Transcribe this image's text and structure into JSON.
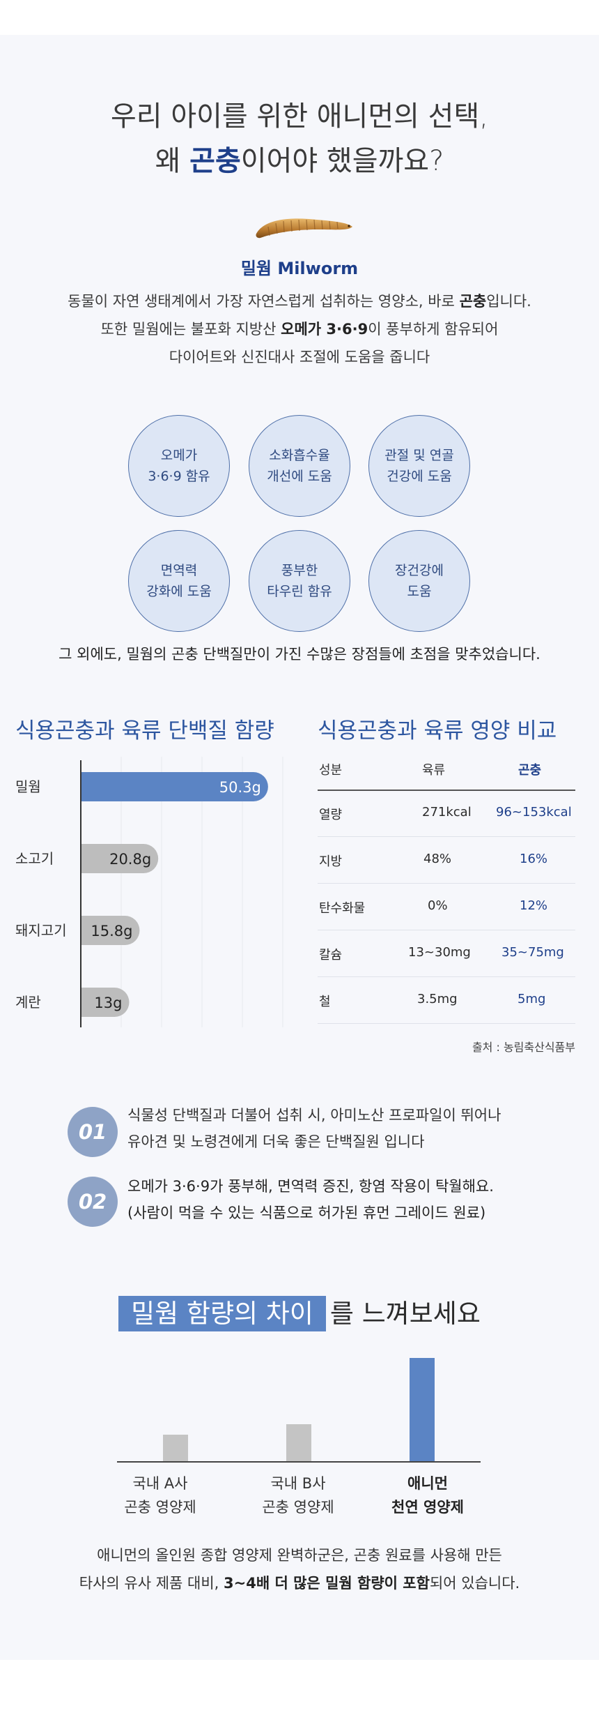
{
  "hero": {
    "title_line1": "우리 아이를 위한 애니먼의 선택,",
    "title_prefix": "왜 ",
    "title_highlight": "곤충",
    "title_suffix": "이어야 했을까요?"
  },
  "ingredient": {
    "name": "밀웜 Milworm",
    "desc_line1_a": "동물이 자연 생태계에서 가장 자연스럽게 섭취하는 영양소, 바로 ",
    "desc_line1_b": "곤충",
    "desc_line1_c": "입니다.",
    "desc_line2_a": "또한 밀웜에는 불포화 지방산 ",
    "desc_line2_b": "오메가 3·6·9",
    "desc_line2_c": "이 풍부하게 함유되어",
    "desc_line3": "다이어트와 신진대사 조절에 도움을 줍니다"
  },
  "benefits": [
    "오메가\n3·6·9 함유",
    "소화흡수율\n개선에 도움",
    "관절 및 연골\n건강에 도움",
    "면역력\n강화에 도움",
    "풍부한\n타우린 함유",
    "장건강에\n도움"
  ],
  "benefits_footer": "그 외에도, 밀웜의 곤충 단백질만이 가진 수많은 장점들에 초점을 맞추었습니다.",
  "chart_data": {
    "type": "bar",
    "title": "식용곤충과 육류 단백질 함량",
    "orientation": "horizontal",
    "categories": [
      "밀웜",
      "소고기",
      "돼지고기",
      "계란"
    ],
    "values": [
      50.3,
      20.8,
      15.8,
      13
    ],
    "value_labels": [
      "50.3g",
      "20.8g",
      "15.8g",
      "13g"
    ],
    "xlim": [
      0,
      55
    ],
    "grid": true,
    "colors": [
      "#5b84c4",
      "#bdbdbd",
      "#bdbdbd",
      "#bdbdbd"
    ]
  },
  "nutrition": {
    "title": "식용곤충과 육류 영양 비교",
    "headers": [
      "성분",
      "육류",
      "곤충"
    ],
    "rows": [
      [
        "열량",
        "271kcal",
        "96~153kcal"
      ],
      [
        "지방",
        "48%",
        "16%"
      ],
      [
        "탄수화물",
        "0%",
        "12%"
      ],
      [
        "칼슘",
        "13~30mg",
        "35~75mg"
      ],
      [
        "철",
        "3.5mg",
        "5mg"
      ]
    ],
    "source": "출처 : 농림축산식품부"
  },
  "points": [
    {
      "num": "01",
      "line1": "식물성 단백질과 더불어 섭취 시, 아미노산 프로파일이 뛰어나",
      "line2": "유아견 및 노령견에게 더욱 좋은 단백질원 입니다"
    },
    {
      "num": "02",
      "line1": "오메가 3·6·9가  풍부해, 면역력 증진, 항염 작용이 탁월해요.",
      "line2": "(사람이 먹을 수 있는 식품으로 허가된 휴먼 그레이드 원료)"
    }
  ],
  "compare": {
    "title_box": "밀웜 함량의 차이",
    "title_rest": "를 느껴보세요",
    "bars": [
      {
        "line1": "국내 A사",
        "line2": "곤충 영양제",
        "level": 0.26,
        "color": "#c4c4c4",
        "bold": false
      },
      {
        "line1": "국내 B사",
        "line2": "곤충 영양제",
        "level": 0.36,
        "color": "#c4c4c4",
        "bold": false
      },
      {
        "line1": "애니먼",
        "line2": "천연 영양제",
        "level": 1.0,
        "color": "#5b84c4",
        "bold": true
      }
    ]
  },
  "closing": {
    "line1": "애니먼의 올인원 종합 영양제 완벽하군은, 곤충 원료를 사용해 만든",
    "line2_a": "타사의 유사 제품 대비, ",
    "line2_b": "3~4배 더 많은 밀웜 함량이 포함",
    "line2_c": "되어 있습니다."
  }
}
